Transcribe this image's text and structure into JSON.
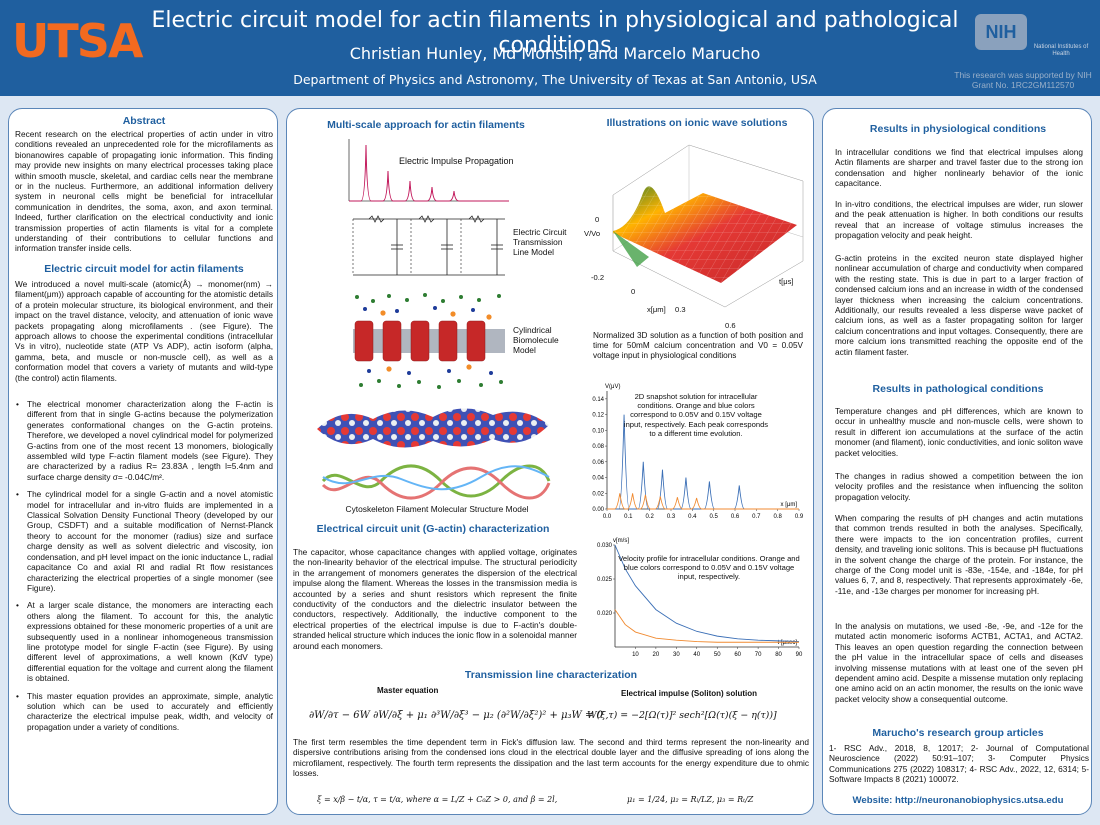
{
  "header": {
    "logo": "UTSA",
    "title": "Electric circuit model for actin filaments in physiological and pathological conditions",
    "authors": "Christian Hunley, Md Mohsin, and Marcelo Marucho",
    "affiliation": "Department of Physics and Astronomy, The University of Texas at San Antonio, USA",
    "nih_logo": "NIH",
    "nih_name": "National Institutes of Health",
    "grant": "This research was supported by NIH Grant No. 1RC2GM112570"
  },
  "left": {
    "abstract_title": "Abstract",
    "abstract_text": "Recent research on the electrical properties of actin under in vitro conditions revealed an unprecedented role for the microfilaments as bionanowires capable of propagating ionic information. This finding may provide new insights on many electrical processes taking place within smooth muscle, skeletal, and cardiac cells near the membrane or in the nucleus. Furthermore, an additional information delivery system in neuronal cells might be beneficial for intracellular communication in dendrites, the soma, axon, and axon terminal. Indeed, further clarification on the electrical conductivity and ionic transmission properties of actin filaments is vital for a complete understanding of their contributions to cellular functions and information transfer inside cells.",
    "model_title": "Electric circuit model for actin filaments",
    "model_text": "We introduced a novel multi-scale (atomic(Å) → monomer(nm) → filament(μm)) approach capable of accounting for the atomistic details of a protein molecular structure, its biological environment, and their impact on the travel distance, velocity, and attenuation of ionic wave packets propagating along microfilaments . (see Figure). The approach allows to choose the experimental conditions (intracellular Vs in vitro), nucleotide state (ATP Vs ADP), actin isoform (alpha, gamma, beta, and muscle or non-muscle cell), as well as a conformation model that covers a variety of mutants and wild-type (the control) actin filaments.",
    "bullet1": "The electrical monomer characterization along the F-actin is different from that in single G-actins because the polymerization generates conformational changes on the G-actin proteins. Therefore, we developed a novel cylindrical model for polymerized G-actins from one of the most recent 13 monomers, biologically assembled wild type F-actin filament models (see Figure). They are characterized by a radius R= 23.83A , length l=5.4nm and surface charge density σ= -0.04C/m².",
    "bullet2": "The cylindrical model for a single G-actin and a novel atomistic model for intracellular and in-vitro fluids are implemented in a Classical Solvation Density Functional Theory (developed by our Group, CSDFT) and a suitable modification of Nernst-Planck theory to account for the monomer (radius) size and surface charge density as well as solvent dielectric and viscosity, ion condensation, and pH level impact on the ionic inductance L, radial capacitance Co and axial Rl and radial Rt flow resistances characterizing the electrical properties of a single monomer (see Figure).",
    "bullet3": "At a larger scale distance, the monomers are interacting each others along the filament. To account for this, the analytic expressions obtained for these monomeric properties of a unit are subsequently used in a nonlinear inhomogeneous transmission line prototype model for single F-actin (see Figure). By using different level of approximations, a well known (KdV type) differential equation for the voltage and current along the filament is obtained.",
    "bullet4": "This master equation provides an approximate, simple, analytic solution which can be used to accurately and efficiently characterize the electrical impulse peak, width, and velocity of propagation under a variety of conditions."
  },
  "middle": {
    "multiscale_title": "Multi-scale approach for actin filaments",
    "impulse_label": "Electric Impulse Propagation",
    "tline_label": "Electric Circuit Transmission Line Model",
    "cyl_label": "Cylindrical Biomolecule Model",
    "cytoskeleton_label": "Cytoskeleton Filament Molecular Structure Model",
    "ionic_title": "Illustrations on ionic wave solutions",
    "plot3d_caption": "Normalized 3D solution as a function of both position and time for 50mM calcium concentration and V0 = 0.05V voltage input in physiological conditions",
    "snapshot_caption": "2D snapshot solution for intracellular conditions. Orange and blue colors correspond to 0.05V and 0.15V voltage input, respectively. Each peak corresponds to a different time evolution.",
    "velocity_caption": "Velocity profile for intracellular conditions. Orange and blue colors correspond to 0.05V and 0.15V voltage input, respectively.",
    "unit_title": "Electrical circuit unit (G-actin) characterization",
    "unit_text": "The capacitor, whose capacitance changes with applied voltage, originates the non-linearity behavior of the electrical impulse. The structural periodicity in the arrangement of monomers generates the dispersion of the electrical impulse along the filament. Whereas the losses in the transmission media is accounted by a series and shunt resistors which represent the finite conductivity of the conductors and the dielectric insulator between the conductors, respectively. Additionally, the inductive component to the electrical properties of the electrical impulse is due to F-actin's double-stranded helical structure which induces the ionic flow in a solenoidal manner around each monomers.",
    "tl_title": "Transmission line characterization",
    "master_label": "Master equation",
    "soliton_label": "Electrical impulse (Soliton) solution",
    "master_eq": "∂W/∂τ − 6W ∂W/∂ξ + μ₁ ∂³W/∂ξ³ − μ₂ (∂²W/∂ξ²)² + μ₃W = 0",
    "soliton_eq": "W(ξ,τ) = −2[Ω(τ)]² sech²[Ω(τ)(ξ − η(τ))]",
    "tl_text": "The first term resembles the time dependent term in Fick's diffusion law. The second and third terms represent the non-linearity and dispersive contributions arising from the condensed ions cloud in the electrical double layer and the diffusive spreading of ions along the microfilament, respectively. The fourth term represents the dissipation and the last term accounts for the energy expenditure due to ohmic losses.",
    "eq_vars": "ξ = x/β − t/α,    τ = t/α,    where    α = L/Z + C₀Z > 0,  and  β = 2l,",
    "eq_mus": "μ₁ = 1/24,  μ₂ = Rₗ/LZ,  μ₃ = Rₜ/Z"
  },
  "chart_data": [
    {
      "type": "line",
      "title": "",
      "xlabel": "x [μm]",
      "ylabel": "V(μV)",
      "xlim": [
        0,
        0.9
      ],
      "ylim": [
        0,
        0.15
      ],
      "x_ticks": [
        "0.0",
        "0.1",
        "0.2",
        "0.3",
        "0.4",
        "0.5",
        "0.6",
        "0.7",
        "0.8",
        "0.9"
      ],
      "y_ticks": [
        "0.00",
        "0.02",
        "0.04",
        "0.06",
        "0.08",
        "0.10",
        "0.12",
        "0.14"
      ],
      "series": [
        {
          "color": "#3b6fb6",
          "peaks_x": [
            0.08,
            0.17,
            0.26,
            0.37,
            0.48,
            0.62
          ],
          "peaks_y": [
            0.12,
            0.06,
            0.05,
            0.04,
            0.035,
            0.03
          ]
        },
        {
          "color": "#f08a30",
          "peaks_x": [
            0.06,
            0.12,
            0.18,
            0.25,
            0.33,
            0.42
          ],
          "peaks_y": [
            0.02,
            0.02,
            0.018,
            0.016,
            0.015,
            0.014
          ]
        }
      ]
    },
    {
      "type": "line",
      "title": "",
      "xlabel": "t [μsec]",
      "ylabel": "v[m/s]",
      "xlim": [
        0,
        90
      ],
      "ylim": [
        0.015,
        0.03
      ],
      "x_ticks": [
        "10",
        "20",
        "30",
        "40",
        "50",
        "60",
        "70",
        "80",
        "90"
      ],
      "y_ticks": [
        "0.020",
        "0.025",
        "0.030"
      ],
      "series": [
        {
          "color": "#3b6fb6",
          "x": [
            0,
            5,
            10,
            20,
            30,
            40,
            50,
            60,
            70,
            80,
            90
          ],
          "y": [
            0.03,
            0.0265,
            0.024,
            0.0205,
            0.0185,
            0.0173,
            0.0166,
            0.0162,
            0.016,
            0.0159,
            0.0158
          ]
        },
        {
          "color": "#f08a30",
          "x": [
            0,
            5,
            10,
            20,
            30,
            40,
            50,
            60,
            70,
            80,
            90
          ],
          "y": [
            0.0205,
            0.0183,
            0.0172,
            0.0163,
            0.016,
            0.0158,
            0.0157,
            0.0157,
            0.0157,
            0.0157,
            0.0157
          ]
        }
      ]
    }
  ],
  "plot3d": {
    "zlabel": "V/Vo",
    "xlabel": "x[μm]",
    "ylabel": "t[μs]",
    "z_ticks": [
      "0",
      "-0.2"
    ],
    "x_ticks": [
      "0",
      "0.3",
      "0.6"
    ]
  },
  "right": {
    "physio_title": "Results in physiological conditions",
    "physio_p1": "In intracellular conditions we find that electrical impulses along Actin filaments are sharper and travel  faster due to the strong ion condensation and higher nonlinearly behavior of the ionic capacitance.",
    "physio_p2": "In in-vitro conditions, the  electrical impulses are wider, run slower  and the peak attenuation is higher. In both conditions our results reveal that an increase of voltage stimulus increases the  propagation velocity  and peak height.",
    "physio_p3": "G-actin proteins in the excited neuron state displayed higher nonlinear accumulation of charge and conductivity when compared with the resting state. This is due in part to a larger fraction of condensed calcium ions and an increase in width of the condensed layer thickness when increasing the calcium concentrations. Additionally, our results revealed a less disperse wave packet of calcium ions, as well as a faster propagating soliton for larger calcium concentrations and input voltages. Consequently, there are more calcium ions transmitted reaching the opposite end of the actin filament faster.",
    "patho_title": "Results in pathological conditions",
    "patho_p1": "Temperature changes and pH differences, which are known to occur in  unhealthy muscle and non-muscle cells, were shown to result in different ion accumulations at the surface of the actin monomer (and filament), ionic conductivities, and ionic soliton wave packet velocities.",
    "patho_p2": "The changes in radius showed a competition between the ion velocity profiles and the resistance when influencing the soliton propagation velocity.",
    "patho_p3": "When comparing the results of pH changes and actin mutations that common trends resulted in both the analyses. Specifically, there were impacts to the ion concentration profiles, current density, and traveling ionic solitons. This is because pH fluctuations in the solvent change the charge of the protein. For instance, the charge of the Cong model unit is -83e, -154e, and -184e, for pH values 6, 7, and 8, respectively. That represents approximately -6e, -11e, and -13e charges  per monomer for increasing pH.",
    "patho_p4": "In the analysis on mutations, we used -8e, -9e, and -12e for the mutated actin monomeric isoforms ACTB1,  ACTA1, and ACTA2. This leaves an open question regarding the connection between the pH value in the intracellular space of cells and diseases involving missense mutations with at least one of the seven pH dependent amino acid. Despite a missense mutation only replacing one amino acid on an actin monomer, the results on the ionic wave packet velocity show a consequential outcome.",
    "articles_title": "Marucho's research group articles",
    "articles_text": "1- RSC Adv., 2018, 8, 12017; 2-  Journal of Computational Neuroscience (2022) 50:91–107; 3- Computer Physics Communications 275 (2022) 108317; 4- RSC Adv., 2022, 12, 6314; 5- Software Impacts 8 (2021) 100072.",
    "website": "Website: http://neuronanobiophysics.utsa.edu"
  },
  "colors": {
    "header": "#1f5f9f",
    "accent": "#1f5f9f",
    "orange": "#f26a20",
    "panel_border": "#5b86b8"
  }
}
